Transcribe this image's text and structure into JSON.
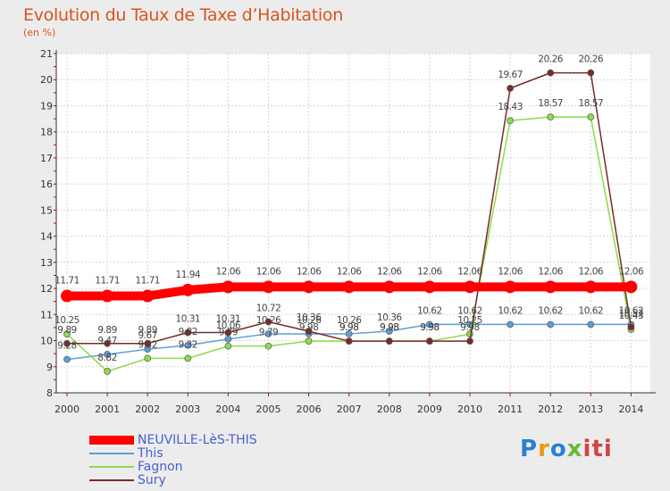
{
  "header": {
    "title": "Evolution du Taux de Taxe d’Habitation",
    "unit": "(en %)"
  },
  "chart_data": {
    "type": "line",
    "title": "Evolution du Taux de Taxe d’Habitation",
    "ylabel": "(en %)",
    "xlabel": "",
    "ylim": [
      8,
      21
    ],
    "yticks": [
      "8",
      "9",
      "10",
      "11",
      "12",
      "13",
      "14",
      "15",
      "16",
      "17",
      "18",
      "19",
      "20",
      "21"
    ],
    "x": [
      "2000",
      "2001",
      "2002",
      "2003",
      "2004",
      "2005",
      "2006",
      "2007",
      "2008",
      "2009",
      "2010",
      "2011",
      "2012",
      "2013",
      "2014"
    ],
    "grid": true,
    "legend_position": "bottom-left",
    "series": [
      {
        "name": "NEUVILLE-LèS-THIS",
        "color": "#ff0000",
        "values": [
          11.71,
          11.71,
          11.71,
          11.94,
          12.06,
          12.06,
          12.06,
          12.06,
          12.06,
          12.06,
          12.06,
          12.06,
          12.06,
          12.06,
          12.06
        ],
        "labels": [
          "11.71",
          "11.71",
          "11.71",
          "11.94",
          "12.06",
          "12.06",
          "12.06",
          "12.06",
          "12.06",
          "12.06",
          "12.06",
          "12.06",
          "12.06",
          "12.06",
          "12.06"
        ]
      },
      {
        "name": "This",
        "color": "#5c9ed6",
        "values": [
          9.28,
          9.47,
          9.67,
          9.82,
          10.06,
          10.26,
          10.26,
          10.26,
          10.36,
          10.62,
          10.62,
          10.62,
          10.62,
          10.62,
          10.62
        ],
        "labels": [
          "9.28",
          "9.47",
          "9.67",
          "9.82",
          "10.06",
          "10.26",
          "10.26",
          "10.26",
          "10.36",
          "10.62",
          "10.62",
          "10.62",
          "10.62",
          "10.62",
          "10.62"
        ]
      },
      {
        "name": "Fagnon",
        "color": "#8ddb4a",
        "values": [
          10.25,
          8.82,
          9.32,
          9.32,
          9.79,
          9.79,
          9.98,
          9.98,
          9.98,
          9.98,
          10.25,
          18.43,
          18.57,
          18.57,
          10.43
        ],
        "labels": [
          "10.25",
          "8.82",
          "9.32",
          "9.32",
          "9.79",
          "9.79",
          "9.98",
          "9.98",
          "9.98",
          "9.98",
          "10.25",
          "18.43",
          "18.57",
          "18.57",
          "10.43"
        ]
      },
      {
        "name": "Sury",
        "color": "#7a2a2a",
        "values": [
          9.89,
          9.89,
          9.89,
          10.31,
          10.31,
          10.72,
          10.36,
          9.98,
          9.98,
          9.98,
          9.98,
          19.67,
          20.26,
          20.26,
          10.52
        ],
        "labels": [
          "9.89",
          "9.89",
          "9.89",
          "10.31",
          "10.31",
          "10.72",
          "10.36",
          "9.98",
          "9.98",
          "9.98",
          "9.98",
          "19.67",
          "20.26",
          "20.26",
          "10.52"
        ]
      }
    ]
  },
  "logo": {
    "p": "P",
    "r": "r",
    "o": "o",
    "x": "x",
    "i": "iti"
  }
}
